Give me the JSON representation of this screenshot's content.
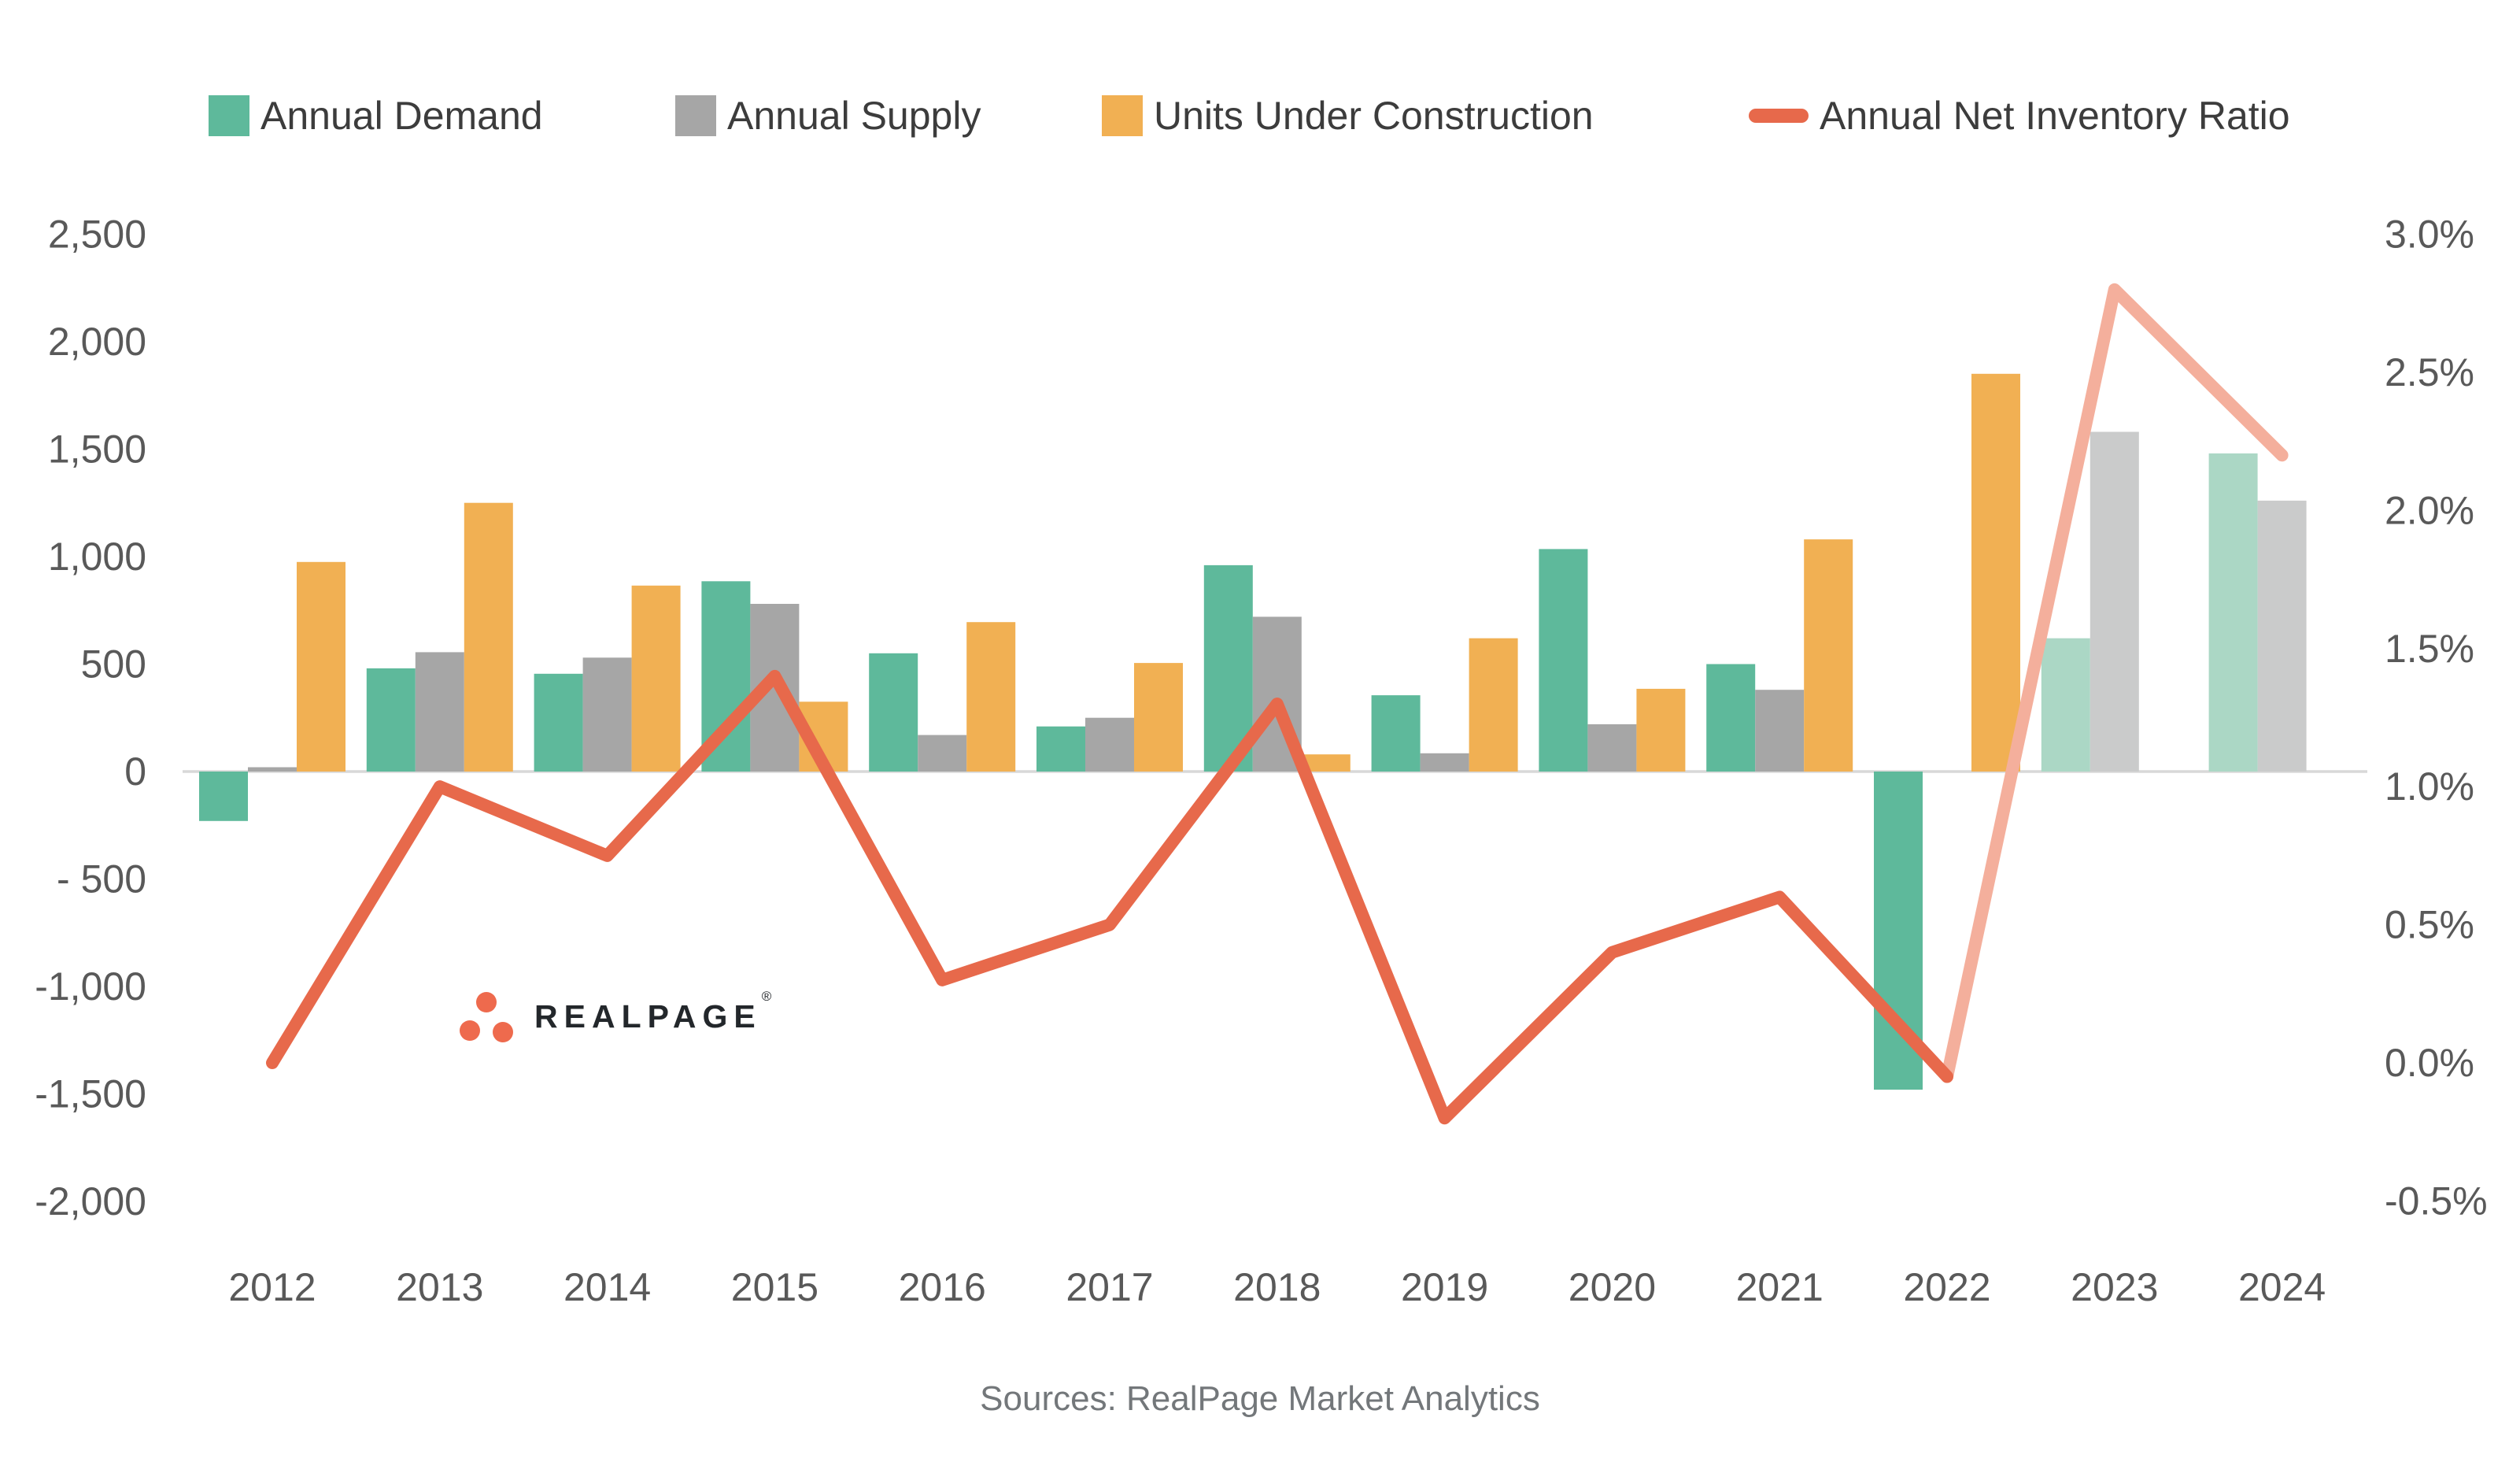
{
  "legend": {
    "items": [
      {
        "label": "Annual Demand",
        "color": "#5EB99B"
      },
      {
        "label": "Annual Supply",
        "color": "#A6A6A6"
      },
      {
        "label": "Units Under Construction",
        "color": "#F1B053"
      },
      {
        "label": "Annual Net Inventory Ratio",
        "color": "#E7694B"
      }
    ]
  },
  "watermark": {
    "text": "REALPAGE",
    "reg": "®",
    "dot_color": "#EE6A4D",
    "text_color": "#23272B"
  },
  "footer": {
    "source": "Sources: RealPage Market Analytics"
  },
  "chart_data": {
    "type": "bar+line",
    "categories": [
      "2012",
      "2013",
      "2014",
      "2015",
      "2016",
      "2017",
      "2018",
      "2019",
      "2020",
      "2021",
      "2022",
      "2023",
      "2024"
    ],
    "series": [
      {
        "name": "Annual Demand",
        "type": "bar",
        "axis": "left",
        "color": "#5EB99B",
        "forecast_color": "#ABD7C5",
        "values": [
          -230,
          480,
          455,
          885,
          550,
          210,
          960,
          355,
          1035,
          500,
          -1480,
          620,
          1480
        ]
      },
      {
        "name": "Annual Supply",
        "type": "bar",
        "axis": "left",
        "color": "#A6A6A6",
        "forecast_color": "#CACBCB",
        "values": [
          20,
          555,
          530,
          780,
          170,
          250,
          720,
          85,
          220,
          380,
          0,
          1580,
          1260
        ]
      },
      {
        "name": "Units Under Construction",
        "type": "bar",
        "axis": "left",
        "color": "#F1B053",
        "forecast_color": "#F6D3A0",
        "values": [
          975,
          1250,
          865,
          325,
          695,
          505,
          80,
          620,
          385,
          1080,
          1850,
          0,
          0
        ]
      },
      {
        "name": "Annual Net Inventory Ratio",
        "type": "line",
        "axis": "right",
        "color": "#E7694B",
        "forecast_color": "#F4AF9C",
        "values_pct": [
          0.0,
          1.0,
          0.75,
          1.4,
          0.3,
          0.5,
          1.3,
          -0.2,
          0.4,
          0.6,
          -0.05,
          2.8,
          2.2
        ]
      }
    ],
    "forecast_from_index": 11,
    "left_axis": {
      "ticks": [
        "2,500",
        "2,000",
        "1,500",
        "1,000",
        "500",
        "0",
        "- 500",
        "-1,000",
        "-1,500",
        "-2,000"
      ],
      "values": [
        2500,
        2000,
        1500,
        1000,
        500,
        0,
        -500,
        -1000,
        -1500,
        -2000
      ],
      "min": -2000,
      "max": 2500
    },
    "right_axis": {
      "ticks": [
        "3.0%",
        "2.5%",
        "2.0%",
        "1.5%",
        "1.0%",
        "0.5%",
        "0.0%",
        "-0.5%"
      ],
      "values": [
        3.0,
        2.5,
        2.0,
        1.5,
        1.0,
        0.5,
        0.0,
        -0.5
      ],
      "min": -0.5,
      "max": 3.0
    },
    "x_labels": [
      "2012",
      "2013",
      "2014",
      "2015",
      "2016",
      "2017",
      "2018",
      "2019",
      "2020",
      "2021",
      "2022",
      "2023",
      "2024"
    ],
    "grid": "zero-line-only",
    "legend_position": "top",
    "tick_color": "#595959",
    "zero_line_color": "#D8D8D8"
  }
}
